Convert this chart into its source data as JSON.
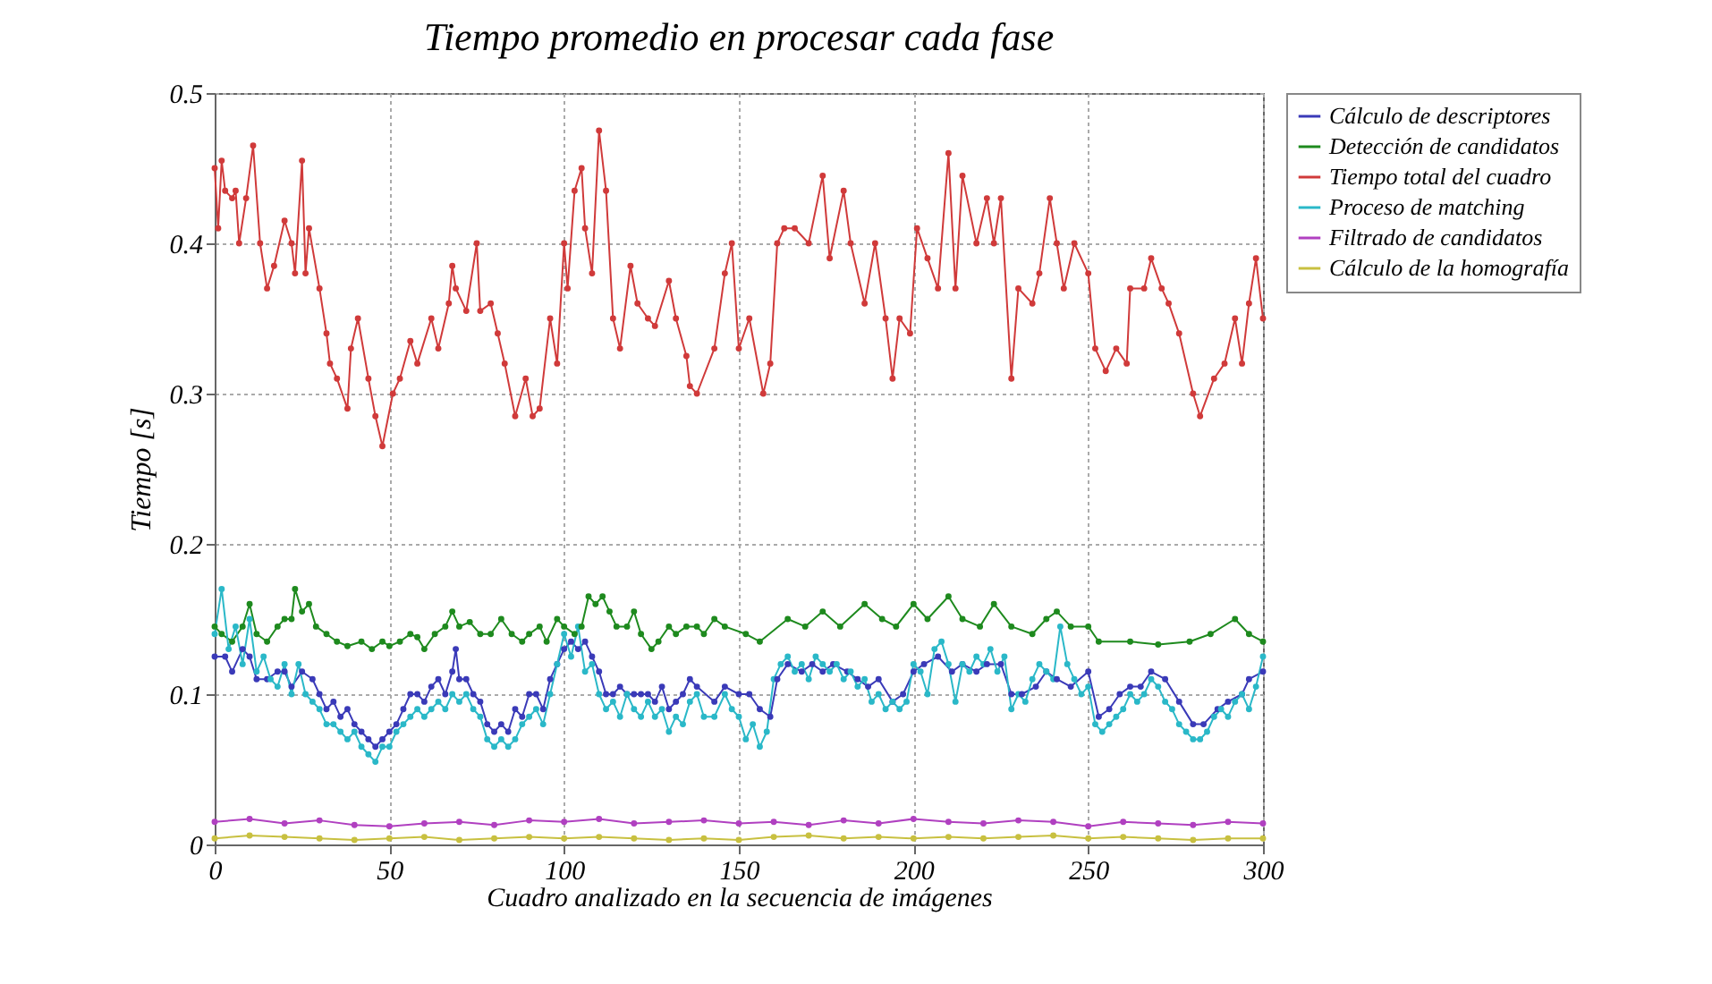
{
  "chart_data": {
    "type": "line",
    "title": "Tiempo promedio en procesar cada fase",
    "xlabel": "Cuadro analizado en la secuencia de imágenes",
    "ylabel": "Tiempo [s]",
    "xlim": [
      0,
      300
    ],
    "xticks": [
      0,
      50,
      100,
      150,
      200,
      250,
      300
    ],
    "ylim": [
      0,
      0.5
    ],
    "yticks": [
      0,
      0.1,
      0.2,
      0.3,
      0.4,
      0.5
    ],
    "grid": true,
    "legend": "top right",
    "marker": "circle",
    "line_style": "solid",
    "series": [
      {
        "name": "Cálculo de descriptores",
        "color": "#3a3ab8",
        "x": [
          0,
          3,
          5,
          8,
          10,
          12,
          15,
          18,
          20,
          22,
          25,
          28,
          30,
          32,
          34,
          36,
          38,
          40,
          42,
          44,
          46,
          48,
          50,
          52,
          54,
          56,
          58,
          60,
          62,
          64,
          66,
          68,
          69,
          70,
          72,
          74,
          76,
          78,
          80,
          82,
          84,
          86,
          88,
          90,
          92,
          94,
          96,
          98,
          100,
          102,
          104,
          106,
          108,
          110,
          112,
          114,
          116,
          118,
          120,
          122,
          124,
          126,
          128,
          130,
          132,
          134,
          136,
          138,
          143,
          146,
          150,
          153,
          156,
          159,
          161,
          164,
          168,
          171,
          174,
          177,
          181,
          184,
          187,
          190,
          194,
          197,
          200,
          203,
          207,
          211,
          214,
          218,
          221,
          225,
          228,
          231,
          235,
          238,
          241,
          245,
          250,
          253,
          256,
          259,
          262,
          265,
          268,
          272,
          276,
          280,
          283,
          287,
          290,
          294,
          296,
          300
        ],
        "values": [
          0.125,
          0.125,
          0.115,
          0.13,
          0.125,
          0.11,
          0.11,
          0.115,
          0.115,
          0.105,
          0.115,
          0.11,
          0.1,
          0.09,
          0.095,
          0.085,
          0.09,
          0.08,
          0.075,
          0.07,
          0.065,
          0.07,
          0.075,
          0.08,
          0.09,
          0.1,
          0.1,
          0.095,
          0.105,
          0.11,
          0.1,
          0.115,
          0.13,
          0.11,
          0.11,
          0.1,
          0.095,
          0.08,
          0.075,
          0.08,
          0.075,
          0.09,
          0.085,
          0.1,
          0.1,
          0.09,
          0.11,
          0.12,
          0.13,
          0.135,
          0.13,
          0.135,
          0.125,
          0.115,
          0.1,
          0.1,
          0.105,
          0.1,
          0.1,
          0.1,
          0.1,
          0.095,
          0.105,
          0.09,
          0.095,
          0.1,
          0.11,
          0.105,
          0.095,
          0.105,
          0.1,
          0.1,
          0.09,
          0.085,
          0.11,
          0.12,
          0.115,
          0.12,
          0.115,
          0.12,
          0.115,
          0.11,
          0.105,
          0.11,
          0.095,
          0.1,
          0.115,
          0.12,
          0.125,
          0.115,
          0.12,
          0.115,
          0.12,
          0.12,
          0.1,
          0.1,
          0.105,
          0.115,
          0.11,
          0.105,
          0.115,
          0.085,
          0.09,
          0.1,
          0.105,
          0.105,
          0.115,
          0.11,
          0.095,
          0.08,
          0.08,
          0.09,
          0.095,
          0.1,
          0.11,
          0.115
        ]
      },
      {
        "name": "Detección de candidatos",
        "color": "#1e8a1e",
        "x": [
          0,
          2,
          5,
          8,
          10,
          12,
          15,
          18,
          20,
          22,
          23,
          25,
          27,
          29,
          32,
          35,
          38,
          42,
          45,
          48,
          50,
          53,
          56,
          58,
          60,
          63,
          66,
          68,
          70,
          73,
          76,
          79,
          82,
          85,
          88,
          90,
          93,
          95,
          98,
          100,
          103,
          105,
          107,
          109,
          111,
          113,
          115,
          118,
          120,
          122,
          125,
          127,
          130,
          132,
          135,
          138,
          140,
          143,
          146,
          152,
          156,
          164,
          169,
          174,
          179,
          186,
          191,
          195,
          200,
          204,
          210,
          214,
          219,
          223,
          228,
          234,
          238,
          241,
          245,
          250,
          253,
          262,
          270,
          279,
          285,
          292,
          296,
          300
        ],
        "values": [
          0.145,
          0.14,
          0.135,
          0.145,
          0.16,
          0.14,
          0.135,
          0.145,
          0.15,
          0.15,
          0.17,
          0.155,
          0.16,
          0.145,
          0.14,
          0.135,
          0.132,
          0.135,
          0.13,
          0.135,
          0.132,
          0.135,
          0.14,
          0.138,
          0.13,
          0.14,
          0.145,
          0.155,
          0.145,
          0.148,
          0.14,
          0.14,
          0.15,
          0.14,
          0.135,
          0.14,
          0.145,
          0.135,
          0.15,
          0.145,
          0.14,
          0.145,
          0.165,
          0.16,
          0.165,
          0.155,
          0.145,
          0.145,
          0.155,
          0.14,
          0.13,
          0.135,
          0.145,
          0.14,
          0.145,
          0.145,
          0.14,
          0.15,
          0.145,
          0.14,
          0.135,
          0.15,
          0.145,
          0.155,
          0.145,
          0.16,
          0.15,
          0.145,
          0.16,
          0.15,
          0.165,
          0.15,
          0.145,
          0.16,
          0.145,
          0.14,
          0.15,
          0.155,
          0.145,
          0.145,
          0.135,
          0.135,
          0.133,
          0.135,
          0.14,
          0.15,
          0.14,
          0.135
        ]
      },
      {
        "name": "Tiempo total del cuadro",
        "color": "#d03a3a",
        "x": [
          0,
          1,
          2,
          3,
          5,
          6,
          7,
          9,
          11,
          13,
          15,
          17,
          20,
          22,
          23,
          25,
          26,
          27,
          30,
          32,
          33,
          35,
          38,
          39,
          41,
          44,
          46,
          48,
          51,
          53,
          56,
          58,
          62,
          64,
          67,
          68,
          69,
          72,
          75,
          76,
          79,
          81,
          83,
          86,
          89,
          91,
          93,
          96,
          98,
          100,
          101,
          103,
          105,
          106,
          108,
          110,
          112,
          114,
          116,
          119,
          121,
          124,
          126,
          130,
          132,
          135,
          136,
          138,
          143,
          146,
          148,
          150,
          153,
          157,
          159,
          161,
          163,
          166,
          170,
          174,
          176,
          180,
          182,
          186,
          189,
          192,
          194,
          196,
          199,
          201,
          204,
          207,
          210,
          212,
          214,
          218,
          221,
          223,
          225,
          228,
          230,
          234,
          236,
          239,
          241,
          243,
          246,
          250,
          252,
          255,
          258,
          261,
          262,
          266,
          268,
          271,
          273,
          276,
          280,
          282,
          286,
          289,
          292,
          294,
          296,
          298,
          300
        ],
        "values": [
          0.45,
          0.41,
          0.455,
          0.435,
          0.43,
          0.435,
          0.4,
          0.43,
          0.465,
          0.4,
          0.37,
          0.385,
          0.415,
          0.4,
          0.38,
          0.455,
          0.38,
          0.41,
          0.37,
          0.34,
          0.32,
          0.31,
          0.29,
          0.33,
          0.35,
          0.31,
          0.285,
          0.265,
          0.3,
          0.31,
          0.335,
          0.32,
          0.35,
          0.33,
          0.36,
          0.385,
          0.37,
          0.355,
          0.4,
          0.355,
          0.36,
          0.34,
          0.32,
          0.285,
          0.31,
          0.285,
          0.29,
          0.35,
          0.32,
          0.4,
          0.37,
          0.435,
          0.45,
          0.41,
          0.38,
          0.475,
          0.435,
          0.35,
          0.33,
          0.385,
          0.36,
          0.35,
          0.345,
          0.375,
          0.35,
          0.325,
          0.305,
          0.3,
          0.33,
          0.38,
          0.4,
          0.33,
          0.35,
          0.3,
          0.32,
          0.4,
          0.41,
          0.41,
          0.4,
          0.445,
          0.39,
          0.435,
          0.4,
          0.36,
          0.4,
          0.35,
          0.31,
          0.35,
          0.34,
          0.41,
          0.39,
          0.37,
          0.46,
          0.37,
          0.445,
          0.4,
          0.43,
          0.4,
          0.43,
          0.31,
          0.37,
          0.36,
          0.38,
          0.43,
          0.4,
          0.37,
          0.4,
          0.38,
          0.33,
          0.315,
          0.33,
          0.32,
          0.37,
          0.37,
          0.39,
          0.37,
          0.36,
          0.34,
          0.3,
          0.285,
          0.31,
          0.32,
          0.35,
          0.32,
          0.36,
          0.39,
          0.35
        ]
      },
      {
        "name": "Proceso de matching",
        "color": "#2ab8c8",
        "x": [
          0,
          2,
          4,
          6,
          8,
          10,
          12,
          14,
          16,
          18,
          20,
          22,
          24,
          26,
          28,
          30,
          32,
          34,
          36,
          38,
          40,
          42,
          44,
          46,
          48,
          50,
          52,
          54,
          56,
          58,
          60,
          62,
          64,
          66,
          68,
          70,
          72,
          74,
          76,
          78,
          80,
          82,
          84,
          86,
          88,
          90,
          92,
          94,
          96,
          98,
          100,
          102,
          104,
          106,
          108,
          110,
          112,
          114,
          116,
          118,
          120,
          122,
          124,
          126,
          128,
          130,
          132,
          134,
          136,
          138,
          140,
          143,
          146,
          148,
          150,
          152,
          154,
          156,
          158,
          160,
          162,
          164,
          166,
          168,
          170,
          172,
          174,
          176,
          178,
          180,
          182,
          184,
          186,
          188,
          190,
          192,
          194,
          196,
          198,
          200,
          202,
          204,
          206,
          208,
          210,
          212,
          214,
          216,
          218,
          220,
          222,
          224,
          226,
          228,
          230,
          232,
          234,
          236,
          238,
          240,
          242,
          244,
          246,
          248,
          250,
          252,
          254,
          256,
          258,
          260,
          262,
          264,
          266,
          268,
          270,
          272,
          274,
          276,
          278,
          280,
          282,
          284,
          286,
          288,
          290,
          292,
          294,
          296,
          298,
          300
        ],
        "values": [
          0.14,
          0.17,
          0.13,
          0.145,
          0.12,
          0.15,
          0.115,
          0.125,
          0.11,
          0.105,
          0.12,
          0.1,
          0.12,
          0.1,
          0.095,
          0.09,
          0.08,
          0.08,
          0.075,
          0.07,
          0.075,
          0.065,
          0.06,
          0.055,
          0.065,
          0.065,
          0.075,
          0.08,
          0.085,
          0.09,
          0.085,
          0.09,
          0.095,
          0.09,
          0.1,
          0.095,
          0.1,
          0.09,
          0.085,
          0.07,
          0.065,
          0.07,
          0.065,
          0.07,
          0.08,
          0.085,
          0.09,
          0.08,
          0.1,
          0.12,
          0.14,
          0.125,
          0.145,
          0.115,
          0.12,
          0.1,
          0.09,
          0.095,
          0.085,
          0.1,
          0.09,
          0.085,
          0.095,
          0.085,
          0.09,
          0.075,
          0.085,
          0.08,
          0.095,
          0.1,
          0.085,
          0.085,
          0.1,
          0.09,
          0.085,
          0.07,
          0.08,
          0.065,
          0.075,
          0.11,
          0.12,
          0.125,
          0.115,
          0.12,
          0.11,
          0.125,
          0.12,
          0.115,
          0.12,
          0.11,
          0.115,
          0.105,
          0.11,
          0.095,
          0.1,
          0.09,
          0.095,
          0.09,
          0.095,
          0.12,
          0.115,
          0.1,
          0.13,
          0.135,
          0.12,
          0.095,
          0.12,
          0.115,
          0.125,
          0.12,
          0.13,
          0.115,
          0.125,
          0.09,
          0.1,
          0.095,
          0.11,
          0.12,
          0.115,
          0.11,
          0.145,
          0.12,
          0.11,
          0.1,
          0.105,
          0.08,
          0.075,
          0.08,
          0.085,
          0.09,
          0.1,
          0.095,
          0.1,
          0.11,
          0.105,
          0.095,
          0.09,
          0.08,
          0.075,
          0.07,
          0.07,
          0.075,
          0.085,
          0.09,
          0.085,
          0.095,
          0.1,
          0.09,
          0.105,
          0.125
        ]
      },
      {
        "name": "Filtrado de candidatos",
        "color": "#b040c0",
        "x": [
          0,
          10,
          20,
          30,
          40,
          50,
          60,
          70,
          80,
          90,
          100,
          110,
          120,
          130,
          140,
          150,
          160,
          170,
          180,
          190,
          200,
          210,
          220,
          230,
          240,
          250,
          260,
          270,
          280,
          290,
          300
        ],
        "values": [
          0.015,
          0.017,
          0.014,
          0.016,
          0.013,
          0.012,
          0.014,
          0.015,
          0.013,
          0.016,
          0.015,
          0.017,
          0.014,
          0.015,
          0.016,
          0.014,
          0.015,
          0.013,
          0.016,
          0.014,
          0.017,
          0.015,
          0.014,
          0.016,
          0.015,
          0.012,
          0.015,
          0.014,
          0.013,
          0.015,
          0.014
        ]
      },
      {
        "name": "Cálculo de la homografía",
        "color": "#c8c040",
        "x": [
          0,
          10,
          20,
          30,
          40,
          50,
          60,
          70,
          80,
          90,
          100,
          110,
          120,
          130,
          140,
          150,
          160,
          170,
          180,
          190,
          200,
          210,
          220,
          230,
          240,
          250,
          260,
          270,
          280,
          290,
          300
        ],
        "values": [
          0.004,
          0.006,
          0.005,
          0.004,
          0.003,
          0.004,
          0.005,
          0.003,
          0.004,
          0.005,
          0.004,
          0.005,
          0.004,
          0.003,
          0.004,
          0.003,
          0.005,
          0.006,
          0.004,
          0.005,
          0.004,
          0.005,
          0.004,
          0.005,
          0.006,
          0.004,
          0.005,
          0.004,
          0.003,
          0.004,
          0.004
        ]
      }
    ]
  }
}
